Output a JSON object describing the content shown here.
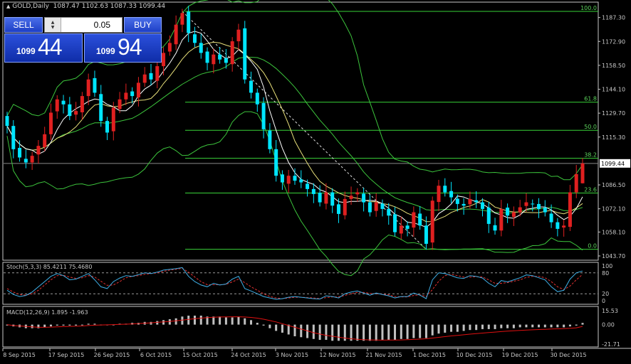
{
  "header": {
    "symbol_title": "GOLD,Daily",
    "ohlc": "1087.47 1102.63 1087.33 1099.44"
  },
  "one_click": {
    "sell_label": "SELL",
    "buy_label": "BUY",
    "lot_value": "0.05",
    "bid_small": "1099",
    "bid_big": "44",
    "ask_small": "1099",
    "ask_big": "94"
  },
  "colors": {
    "bull": "#e02020",
    "bear": "#00e5ff",
    "fib": "#39d439",
    "bollinger": "#3cc43c",
    "ma_white": "#ffffff",
    "ma_yellow": "#e8e07a",
    "stoch_main": "#3fb0e8",
    "stoch_signal": "#e03030",
    "macd_hist": "#c0c0c0",
    "macd_signal": "#e01010"
  },
  "chart_data": [
    {
      "type": "candlestick",
      "y_ticks": [
        "1187.30",
        "1172.90",
        "1158.50",
        "1144.10",
        "1129.70",
        "1115.30",
        "1099.44",
        "1086.50",
        "1072.10",
        "1058.10",
        "1043.70"
      ],
      "ylim": [
        1043.7,
        1194.0
      ],
      "current_price": "1099.44",
      "fibonacci": [
        {
          "label": "100.0",
          "price": 1191.0
        },
        {
          "label": "61.8",
          "price": 1136.3
        },
        {
          "label": "50.0",
          "price": 1119.4
        },
        {
          "label": "38.2",
          "price": 1102.5
        },
        {
          "label": "23.6",
          "price": 1081.6
        },
        {
          "label": "0.0",
          "price": 1047.7
        }
      ],
      "x_tick_labels": [
        "8 Sep 2015",
        "17 Sep 2015",
        "26 Sep 2015",
        "6 Oct 2015",
        "15 Oct 2015",
        "24 Oct 2015",
        "3 Nov 2015",
        "12 Nov 2015",
        "21 Nov 2015",
        "1 Dec 2015",
        "10 Dec 2015",
        "19 Dec 2015",
        "30 Dec 2015"
      ],
      "closes": [
        1122,
        1108,
        1103,
        1100,
        1104,
        1110,
        1117,
        1130,
        1138,
        1135,
        1128,
        1131,
        1140,
        1150,
        1142,
        1125,
        1118,
        1133,
        1138,
        1142,
        1140,
        1148,
        1153,
        1150,
        1158,
        1166,
        1172,
        1183,
        1190,
        1178,
        1172,
        1166,
        1160,
        1165,
        1162,
        1160,
        1173,
        1180,
        1150,
        1142,
        1135,
        1120,
        1108,
        1092,
        1088,
        1092,
        1089,
        1088,
        1084,
        1081,
        1076,
        1082,
        1074,
        1069,
        1078,
        1080,
        1082,
        1076,
        1070,
        1076,
        1072,
        1068,
        1058,
        1062,
        1060,
        1070,
        1062,
        1051,
        1077,
        1086,
        1082,
        1079,
        1075,
        1074,
        1078,
        1076,
        1072,
        1063,
        1059,
        1072,
        1068,
        1070,
        1073,
        1076,
        1075,
        1072,
        1070,
        1064,
        1060,
        1062,
        1082,
        1093,
        1099.44
      ],
      "series": [
        {
          "name": "Bollinger Bands"
        },
        {
          "name": "Moving Averages"
        }
      ]
    },
    {
      "type": "line",
      "title": "Stoch(5,3,3) 85.4211 75.4680",
      "y_ticks": [
        "100",
        "80",
        "20",
        "0"
      ],
      "ylim": [
        0,
        100
      ],
      "levels": [
        80,
        20
      ],
      "main": [
        30,
        18,
        12,
        15,
        25,
        40,
        55,
        70,
        78,
        72,
        60,
        62,
        70,
        78,
        60,
        40,
        35,
        55,
        65,
        72,
        70,
        75,
        80,
        78,
        82,
        88,
        90,
        92,
        95,
        70,
        55,
        45,
        40,
        50,
        45,
        48,
        62,
        70,
        35,
        28,
        20,
        12,
        8,
        4,
        6,
        10,
        12,
        10,
        8,
        6,
        5,
        14,
        12,
        8,
        20,
        25,
        28,
        22,
        16,
        22,
        18,
        14,
        8,
        12,
        12,
        22,
        16,
        6,
        60,
        80,
        78,
        72,
        66,
        64,
        72,
        70,
        65,
        50,
        40,
        58,
        54,
        60,
        66,
        74,
        72,
        66,
        60,
        40,
        26,
        30,
        62,
        80,
        85.4
      ],
      "signal": [
        35,
        25,
        18,
        16,
        20,
        30,
        45,
        60,
        72,
        73,
        68,
        64,
        66,
        72,
        68,
        56,
        44,
        45,
        55,
        66,
        70,
        72,
        76,
        78,
        80,
        84,
        88,
        90,
        93,
        82,
        68,
        55,
        46,
        46,
        46,
        47,
        54,
        62,
        52,
        40,
        30,
        20,
        12,
        8,
        6,
        8,
        10,
        10,
        9,
        8,
        6,
        9,
        11,
        11,
        15,
        20,
        24,
        24,
        21,
        20,
        19,
        17,
        12,
        11,
        11,
        15,
        17,
        12,
        32,
        56,
        72,
        76,
        72,
        68,
        68,
        69,
        68,
        60,
        50,
        50,
        52,
        56,
        60,
        67,
        70,
        70,
        66,
        55,
        40,
        32,
        42,
        60,
        75.5
      ]
    },
    {
      "type": "bar",
      "title": "MACD(12,26,9) 1.895 -1.963",
      "y_ticks": [
        "15.53",
        "0.00",
        "-21.71"
      ],
      "ylim": [
        -21.71,
        15.53
      ],
      "histogram": [
        -1,
        -2,
        -3,
        -4,
        -4,
        -4,
        -3,
        -2,
        -1,
        -1,
        -1,
        -1,
        0,
        1,
        1,
        0,
        0,
        0,
        1,
        1,
        2,
        2,
        3,
        3,
        4,
        5,
        6,
        7,
        9,
        10,
        10,
        10,
        9,
        9,
        9,
        8,
        8,
        9,
        7,
        5,
        2,
        -1,
        -4,
        -7,
        -9,
        -11,
        -13,
        -14,
        -15,
        -16,
        -17,
        -17,
        -18,
        -18,
        -18,
        -18,
        -18,
        -18,
        -18,
        -18,
        -17,
        -17,
        -17,
        -16,
        -16,
        -15,
        -15,
        -15,
        -12,
        -10,
        -9,
        -8,
        -8,
        -7,
        -6,
        -6,
        -5,
        -5,
        -5,
        -4,
        -4,
        -4,
        -3,
        -3,
        -3,
        -3,
        -3,
        -3,
        -3,
        -3,
        -2,
        -1,
        1.9
      ],
      "signal": [
        0,
        -1,
        -1.5,
        -2,
        -2.5,
        -3,
        -3,
        -2.8,
        -2.5,
        -2.2,
        -2,
        -1.8,
        -1.5,
        -1,
        -0.6,
        -0.4,
        -0.2,
        0,
        0.2,
        0.5,
        0.8,
        1.2,
        1.6,
        2,
        2.5,
        3,
        3.6,
        4.3,
        5,
        5.8,
        6.6,
        7.2,
        7.8,
        8.2,
        8.5,
        8.6,
        8.7,
        8.7,
        8.5,
        8,
        7.2,
        6,
        4.5,
        3,
        1,
        -1,
        -3,
        -5,
        -7,
        -9,
        -10.5,
        -12,
        -13,
        -14,
        -15,
        -15.8,
        -16.4,
        -16.8,
        -17,
        -17.2,
        -17.3,
        -17.2,
        -17.1,
        -17,
        -16.8,
        -16.5,
        -16.2,
        -15.8,
        -15,
        -14.2,
        -13.4,
        -12.6,
        -12,
        -11.3,
        -10.6,
        -10,
        -9.4,
        -8.8,
        -8.3,
        -7.8,
        -7.3,
        -6.9,
        -6.5,
        -6.1,
        -5.8,
        -5.5,
        -5.2,
        -4.9,
        -4.7,
        -4.4,
        -4.1,
        -3.6,
        -1.96
      ]
    }
  ]
}
